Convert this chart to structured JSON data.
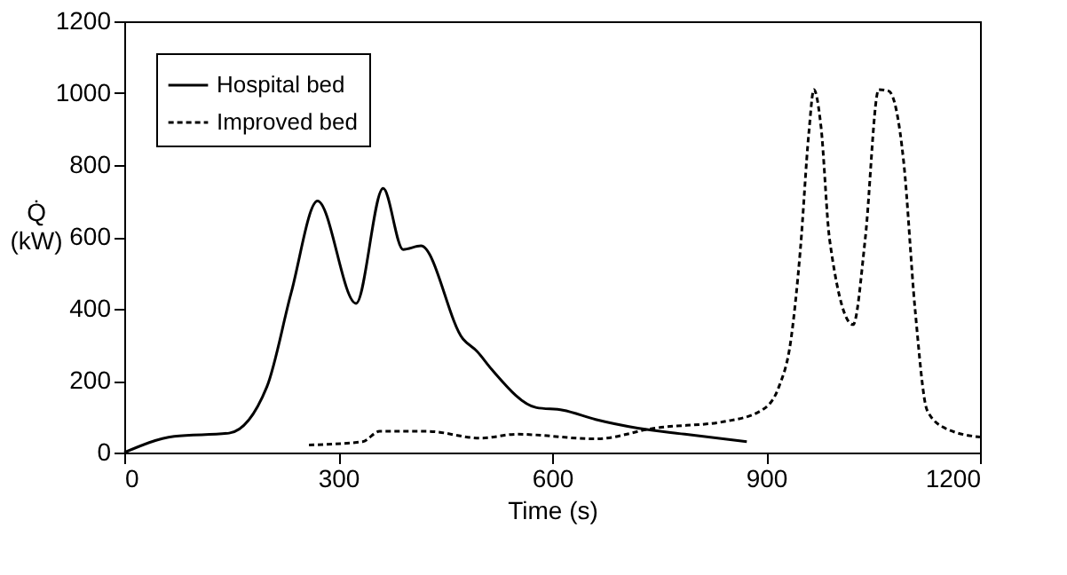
{
  "chart_data": {
    "type": "line",
    "xlabel": "Time (s)",
    "ylabel": "Q̇\n(kW)",
    "xlim": [
      0,
      1200
    ],
    "xticks": [
      0,
      300,
      600,
      900,
      1200
    ],
    "ylim": [
      0,
      1200
    ],
    "yticks": [
      0,
      200,
      400,
      600,
      800,
      1000,
      1200
    ],
    "grid": false,
    "legend": "top left",
    "marker": "none",
    "series": [
      {
        "name": "Hospital bed",
        "color": "#000000",
        "line_style": "solid",
        "x": [
          0,
          70,
          147,
          200,
          234,
          271,
          325,
          363,
          391,
          416,
          475,
          495,
          515,
          578,
          615,
          661,
          720,
          786,
          873
        ],
        "values": [
          0,
          45,
          54,
          183,
          444,
          700,
          415,
          735,
          565,
          575,
          316,
          281,
          232,
          125,
          118,
          92,
          68,
          51,
          30
        ]
      },
      {
        "name": "Improved bed",
        "color": "#000000",
        "line_style": "dashed",
        "x": [
          259,
          334,
          358,
          425,
          500,
          550,
          661,
          744,
          844,
          894,
          918,
          935,
          948,
          960,
          967,
          977,
          989,
          1022,
          1039,
          1058,
          1072,
          1093,
          1109,
          1126,
          1151,
          1200
        ],
        "values": [
          21,
          30,
          59,
          59,
          40,
          51,
          38,
          68,
          87,
          118,
          183,
          316,
          563,
          890,
          1010,
          907,
          594,
          356,
          594,
          1010,
          1006,
          808,
          397,
          117,
          68,
          43
        ]
      }
    ]
  }
}
